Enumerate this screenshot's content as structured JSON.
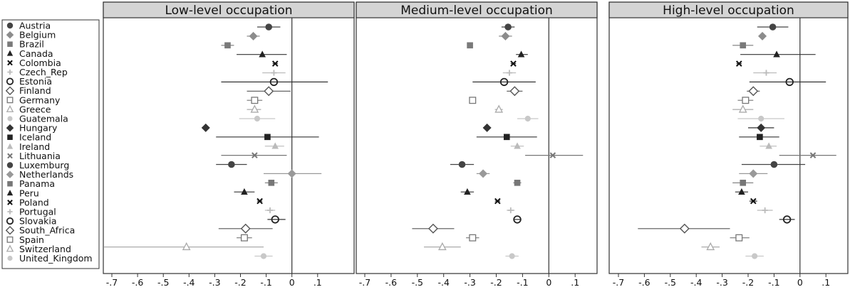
{
  "chart_data": {
    "type": "scatter",
    "subtype": "dot-and-whisker",
    "x_tick_labels": [
      "-.7",
      "-.6",
      "-.5",
      "-.4",
      "-.3",
      "-.2",
      "-.1",
      "0",
      ".1"
    ],
    "x_ticks": [
      -0.7,
      -0.6,
      -0.5,
      -0.4,
      -0.3,
      -0.2,
      -0.1,
      0,
      0.1
    ],
    "xlim": [
      -0.73,
      0.14
    ],
    "reference_line": 0,
    "grid": false,
    "legend_placement": "left",
    "series": [
      {
        "name": "Austria",
        "marker": "circle",
        "color": "#444444"
      },
      {
        "name": "Belgium",
        "marker": "diamond",
        "color": "#8c8c8c"
      },
      {
        "name": "Brazil",
        "marker": "square",
        "color": "#7a7a7a"
      },
      {
        "name": "Canada",
        "marker": "triangle",
        "color": "#222222"
      },
      {
        "name": "Colombia",
        "marker": "x",
        "color": "#111111"
      },
      {
        "name": "Czech_Rep",
        "marker": "plus",
        "color": "#bbbbbb"
      },
      {
        "name": "Estonia",
        "marker": "circle-open",
        "color": "#222222"
      },
      {
        "name": "Finland",
        "marker": "diamond-open",
        "color": "#555555"
      },
      {
        "name": "Germany",
        "marker": "square-open",
        "color": "#777777"
      },
      {
        "name": "Greece",
        "marker": "triangle-open",
        "color": "#aaaaaa"
      },
      {
        "name": "Guatemala",
        "marker": "dot",
        "color": "#c8c8c8"
      },
      {
        "name": "Hungary",
        "marker": "diamond",
        "color": "#333333"
      },
      {
        "name": "Iceland",
        "marker": "square",
        "color": "#222222"
      },
      {
        "name": "Ireland",
        "marker": "triangle",
        "color": "#bbbbbb"
      },
      {
        "name": "Lithuania",
        "marker": "x",
        "color": "#777777"
      },
      {
        "name": "Luxemburg",
        "marker": "circle",
        "color": "#444444"
      },
      {
        "name": "Netherlands",
        "marker": "diamond",
        "color": "#999999"
      },
      {
        "name": "Panama",
        "marker": "square",
        "color": "#777777"
      },
      {
        "name": "Peru",
        "marker": "triangle",
        "color": "#222222"
      },
      {
        "name": "Poland",
        "marker": "x",
        "color": "#111111"
      },
      {
        "name": "Portugal",
        "marker": "plus",
        "color": "#bbbbbb"
      },
      {
        "name": "Slovakia",
        "marker": "circle-open",
        "color": "#222222"
      },
      {
        "name": "South_Africa",
        "marker": "diamond-open",
        "color": "#555555"
      },
      {
        "name": "Spain",
        "marker": "square-open",
        "color": "#777777"
      },
      {
        "name": "Switzerland",
        "marker": "triangle-open",
        "color": "#aaaaaa"
      },
      {
        "name": "United_Kingdom",
        "marker": "dot",
        "color": "#c8c8c8"
      }
    ],
    "panels": [
      {
        "title": "Low-level occupation",
        "estimates": [
          -0.09,
          -0.15,
          -0.25,
          -0.115,
          -0.065,
          -0.07,
          -0.07,
          -0.09,
          -0.145,
          -0.145,
          -0.135,
          -0.335,
          -0.095,
          -0.065,
          -0.145,
          -0.235,
          0.0,
          -0.08,
          -0.185,
          -0.125,
          -0.085,
          -0.065,
          -0.18,
          -0.185,
          -0.41,
          -0.11
        ],
        "lower": [
          -0.135,
          -0.175,
          -0.275,
          -0.215,
          -0.075,
          -0.115,
          -0.275,
          -0.175,
          -0.175,
          -0.175,
          -0.205,
          -0.345,
          -0.295,
          -0.105,
          -0.275,
          -0.295,
          -0.11,
          -0.105,
          -0.225,
          -0.135,
          -0.105,
          -0.095,
          -0.285,
          -0.215,
          -0.73,
          -0.145
        ],
        "upper": [
          -0.045,
          -0.125,
          -0.225,
          -0.02,
          -0.055,
          -0.025,
          0.14,
          -0.005,
          -0.115,
          -0.12,
          -0.065,
          -0.325,
          0.105,
          -0.03,
          -0.02,
          -0.175,
          0.115,
          -0.055,
          -0.145,
          -0.115,
          -0.065,
          -0.025,
          -0.075,
          -0.155,
          -0.11,
          -0.075
        ]
      },
      {
        "title": "Medium-level occupation",
        "estimates": [
          -0.155,
          -0.165,
          -0.3,
          -0.105,
          -0.135,
          -0.15,
          -0.17,
          -0.13,
          -0.29,
          -0.19,
          -0.08,
          -0.235,
          -0.16,
          -0.12,
          0.015,
          -0.33,
          -0.25,
          -0.12,
          -0.31,
          -0.195,
          -0.145,
          -0.12,
          -0.44,
          -0.29,
          -0.405,
          -0.14
        ],
        "lower": [
          -0.18,
          -0.19,
          -0.31,
          -0.125,
          -0.145,
          -0.175,
          -0.29,
          -0.16,
          -0.3,
          -0.205,
          -0.12,
          -0.25,
          -0.275,
          -0.145,
          -0.09,
          -0.375,
          -0.275,
          -0.135,
          -0.335,
          -0.205,
          -0.16,
          -0.135,
          -0.52,
          -0.315,
          -0.475,
          -0.165
        ],
        "upper": [
          -0.13,
          -0.14,
          -0.29,
          -0.08,
          -0.125,
          -0.125,
          -0.05,
          -0.1,
          -0.28,
          -0.175,
          -0.04,
          -0.22,
          -0.045,
          -0.095,
          0.13,
          -0.285,
          -0.225,
          -0.105,
          -0.285,
          -0.185,
          -0.13,
          -0.105,
          -0.36,
          -0.265,
          -0.335,
          -0.115
        ]
      },
      {
        "title": "High-level occupation",
        "estimates": [
          -0.105,
          -0.145,
          -0.22,
          -0.09,
          -0.235,
          -0.13,
          -0.04,
          -0.18,
          -0.21,
          -0.22,
          -0.15,
          -0.15,
          -0.155,
          -0.12,
          0.05,
          -0.1,
          -0.18,
          -0.22,
          -0.225,
          -0.18,
          -0.135,
          -0.05,
          -0.445,
          -0.235,
          -0.345,
          -0.175
        ],
        "lower": [
          -0.165,
          -0.16,
          -0.26,
          -0.23,
          -0.245,
          -0.18,
          -0.195,
          -0.205,
          -0.24,
          -0.26,
          -0.24,
          -0.2,
          -0.235,
          -0.155,
          -0.08,
          -0.225,
          -0.235,
          -0.26,
          -0.25,
          -0.195,
          -0.165,
          -0.08,
          -0.625,
          -0.27,
          -0.38,
          -0.21
        ],
        "upper": [
          -0.045,
          -0.13,
          -0.18,
          0.06,
          -0.225,
          -0.09,
          0.1,
          -0.155,
          -0.18,
          -0.18,
          -0.06,
          -0.1,
          -0.08,
          -0.09,
          0.18,
          0.02,
          -0.125,
          -0.18,
          -0.2,
          -0.165,
          -0.105,
          -0.02,
          -0.27,
          -0.195,
          -0.31,
          -0.14
        ]
      }
    ]
  }
}
